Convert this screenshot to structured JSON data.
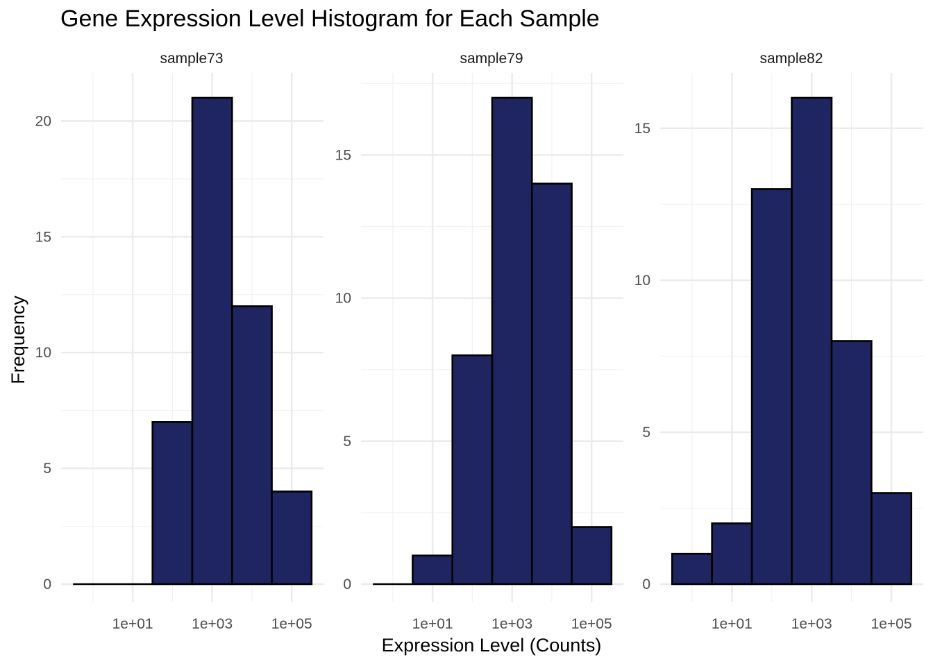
{
  "chart_data": {
    "type": "bar",
    "title": "Gene Expression Level Histogram for Each Sample",
    "xlabel": "Expression Level (Counts)",
    "ylabel": "Frequency",
    "x_scale": "log10",
    "x_tick_labels": [
      "1e+01",
      "1e+03",
      "1e+05"
    ],
    "x_tick_values": [
      10,
      1000,
      100000
    ],
    "bin_edges": [
      0.316,
      3.16,
      31.6,
      316,
      3162,
      31623,
      316228
    ],
    "bar_color": "#1F2560",
    "outline_color": "#000000",
    "grid": true,
    "facets": [
      {
        "name": "sample73",
        "counts": [
          0,
          0,
          7,
          21,
          12,
          4
        ],
        "ylim": [
          0,
          22
        ],
        "y_ticks": [
          0,
          5,
          10,
          15,
          20
        ]
      },
      {
        "name": "sample79",
        "counts": [
          0,
          1,
          8,
          17,
          14,
          2
        ],
        "ylim": [
          0,
          17.85
        ],
        "y_ticks": [
          0,
          5,
          10,
          15
        ]
      },
      {
        "name": "sample82",
        "counts": [
          1,
          2,
          13,
          16,
          8,
          3
        ],
        "ylim": [
          0,
          16.8
        ],
        "y_ticks": [
          0,
          5,
          10,
          15
        ]
      }
    ]
  }
}
